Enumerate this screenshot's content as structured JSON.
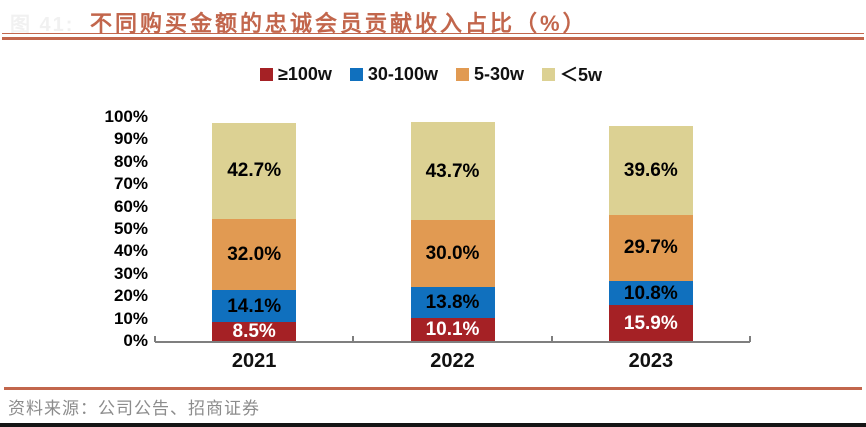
{
  "figure": {
    "faint_label": "图 41:",
    "title": "不同购买金额的忠诚会员贡献收入占比（%）",
    "source": "资料来源：公司公告、招商证券"
  },
  "colors": {
    "accent_rule": "#c2664c",
    "axis": "#7f7f7f",
    "source_text": "#8c8c8c"
  },
  "chart_data": {
    "type": "bar",
    "stacked": true,
    "title": "不同购买金额的忠诚会员贡献收入占比（%）",
    "categories": [
      "2021",
      "2022",
      "2023"
    ],
    "series": [
      {
        "name": "≥100w",
        "color": "#a52125",
        "label_color": "#ffffff",
        "values": [
          8.5,
          10.1,
          15.9
        ],
        "labels": [
          "8.5%",
          "10.1%",
          "15.9%"
        ]
      },
      {
        "name": "30-100w",
        "color": "#1070be",
        "label_color": "#000000",
        "values": [
          14.1,
          13.8,
          10.8
        ],
        "labels": [
          "14.1%",
          "13.8%",
          "10.8%"
        ]
      },
      {
        "name": "5-30w",
        "color": "#e19a52",
        "label_color": "#000000",
        "values": [
          32.0,
          30.0,
          29.7
        ],
        "labels": [
          "32.0%",
          "30.0%",
          "29.7%"
        ]
      },
      {
        "name": "＜5w",
        "color": "#dcd193",
        "label_color": "#000000",
        "values": [
          42.7,
          43.7,
          39.6
        ],
        "labels": [
          "42.7%",
          "43.7%",
          "39.6%"
        ]
      }
    ],
    "y_ticks": [
      "100%",
      "90%",
      "80%",
      "70%",
      "60%",
      "50%",
      "40%",
      "30%",
      "20%",
      "10%",
      "0%"
    ],
    "ylim": [
      0,
      100
    ],
    "grid": false,
    "legend_position": "top",
    "value_suffix": "%"
  }
}
